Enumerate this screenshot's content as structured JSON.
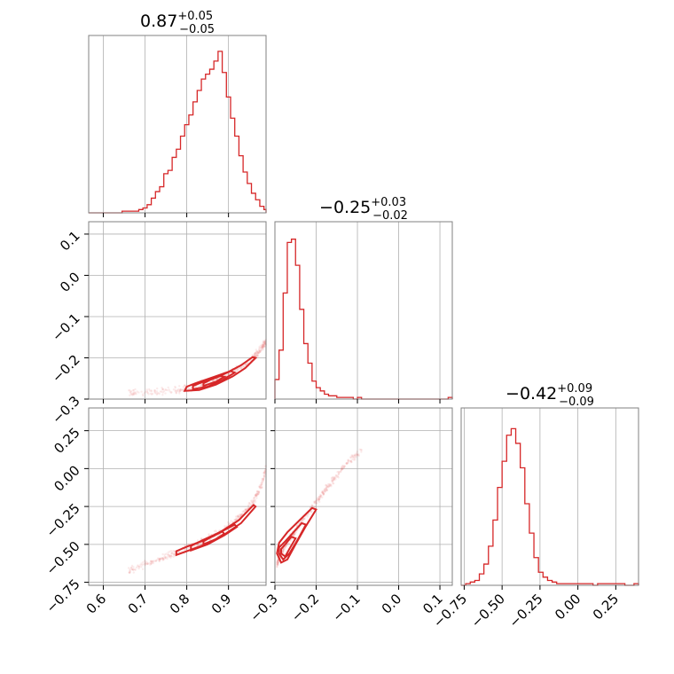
{
  "chart_data": {
    "type": "corner",
    "grid": true,
    "color": "#d62728",
    "parameters": [
      {
        "title": {
          "median": "0.87",
          "plus": "+0.05",
          "minus": "−0.05"
        },
        "range": [
          0.565,
          0.99
        ],
        "ticks": [
          0.6,
          0.7,
          0.8,
          0.9
        ],
        "tick_labels": [
          "0.6",
          "0.7",
          "0.8",
          "0.9"
        ],
        "hist": {
          "edges": [
            0.565,
            0.575,
            0.585,
            0.595,
            0.605,
            0.615,
            0.625,
            0.635,
            0.645,
            0.655,
            0.665,
            0.675,
            0.685,
            0.695,
            0.705,
            0.715,
            0.725,
            0.735,
            0.745,
            0.755,
            0.765,
            0.775,
            0.785,
            0.795,
            0.805,
            0.815,
            0.825,
            0.835,
            0.845,
            0.855,
            0.865,
            0.875,
            0.885,
            0.895,
            0.905,
            0.915,
            0.925,
            0.935,
            0.945,
            0.955,
            0.965,
            0.975,
            0.985,
            0.99
          ],
          "counts": [
            0,
            0,
            0,
            0,
            0,
            0,
            0,
            0,
            0.01,
            0.01,
            0.01,
            0.01,
            0.02,
            0.03,
            0.05,
            0.09,
            0.13,
            0.16,
            0.24,
            0.26,
            0.34,
            0.39,
            0.47,
            0.54,
            0.6,
            0.68,
            0.75,
            0.82,
            0.85,
            0.88,
            0.93,
            0.99,
            0.86,
            0.71,
            0.58,
            0.47,
            0.35,
            0.25,
            0.18,
            0.12,
            0.08,
            0.04,
            0.02
          ]
        }
      },
      {
        "title": {
          "median": "−0.25",
          "plus": "+0.03",
          "minus": "−0.02"
        },
        "range": [
          -0.3,
          0.13
        ],
        "ticks": [
          -0.3,
          -0.2,
          -0.1,
          0.0,
          0.1
        ],
        "tick_labels": [
          "−0.3",
          "−0.2",
          "−0.1",
          "0.0",
          "0.1"
        ],
        "hist": {
          "edges": [
            -0.3,
            -0.29,
            -0.28,
            -0.27,
            -0.26,
            -0.25,
            -0.24,
            -0.23,
            -0.22,
            -0.21,
            -0.2,
            -0.19,
            -0.18,
            -0.17,
            -0.16,
            -0.15,
            -0.14,
            -0.13,
            -0.12,
            -0.11,
            -0.1,
            -0.09,
            -0.08,
            -0.07,
            -0.06,
            -0.05,
            -0.04,
            -0.03,
            -0.02,
            -0.01,
            0.0,
            0.01,
            0.02,
            0.03,
            0.04,
            0.05,
            0.06,
            0.07,
            0.08,
            0.09,
            0.1,
            0.11,
            0.12,
            0.13
          ],
          "counts": [
            0.12,
            0.3,
            0.65,
            0.96,
            0.98,
            0.82,
            0.55,
            0.34,
            0.22,
            0.11,
            0.07,
            0.05,
            0.03,
            0.02,
            0.02,
            0.01,
            0.01,
            0.01,
            0.01,
            0,
            0.01,
            0,
            0,
            0,
            0,
            0,
            0,
            0,
            0,
            0,
            0,
            0,
            0,
            0,
            0,
            0,
            0,
            0,
            0,
            0,
            0,
            0,
            0.01
          ]
        }
      },
      {
        "title": {
          "median": "−0.42",
          "plus": "+0.09",
          "minus": "−0.09"
        },
        "range": [
          -0.77,
          0.4
        ],
        "ticks": [
          -0.75,
          -0.5,
          -0.25,
          0.0,
          0.25
        ],
        "tick_labels": [
          "−0.75",
          "−0.50",
          "−0.25",
          "0.00",
          "0.25"
        ],
        "hist": {
          "edges": [
            -0.77,
            -0.74,
            -0.71,
            -0.68,
            -0.65,
            -0.62,
            -0.59,
            -0.56,
            -0.53,
            -0.5,
            -0.47,
            -0.44,
            -0.41,
            -0.38,
            -0.35,
            -0.32,
            -0.29,
            -0.26,
            -0.23,
            -0.2,
            -0.17,
            -0.14,
            -0.11,
            -0.08,
            -0.05,
            -0.02,
            0.01,
            0.04,
            0.07,
            0.1,
            0.13,
            0.16,
            0.19,
            0.22,
            0.25,
            0.28,
            0.31,
            0.34,
            0.37,
            0.4
          ],
          "counts": [
            0,
            0.01,
            0.02,
            0.03,
            0.07,
            0.13,
            0.24,
            0.4,
            0.6,
            0.76,
            0.92,
            0.96,
            0.87,
            0.72,
            0.5,
            0.32,
            0.17,
            0.08,
            0.05,
            0.03,
            0.02,
            0.01,
            0.01,
            0.01,
            0.01,
            0.01,
            0.01,
            0.01,
            0.01,
            0,
            0.01,
            0.01,
            0.01,
            0.01,
            0.01,
            0.01,
            0,
            0,
            0.01
          ]
        }
      }
    ],
    "panels_2d": [
      {
        "x_param": 0,
        "y_param": 1,
        "y_ticks": [
          -0.3,
          -0.2,
          -0.1,
          0.0,
          0.1
        ],
        "y_tick_labels": [
          "−0.3",
          "−0.2",
          "−0.1",
          "0.0",
          "0.1"
        ],
        "ridge": [
          [
            0.66,
            -0.285
          ],
          [
            0.72,
            -0.283
          ],
          [
            0.78,
            -0.278
          ],
          [
            0.81,
            -0.272
          ],
          [
            0.84,
            -0.264
          ],
          [
            0.87,
            -0.254
          ],
          [
            0.9,
            -0.24
          ],
          [
            0.93,
            -0.222
          ],
          [
            0.96,
            -0.2
          ],
          [
            0.98,
            -0.175
          ],
          [
            0.99,
            -0.16
          ]
        ],
        "contours": [
          [
            [
              0.795,
              -0.28
            ],
            [
              0.83,
              -0.278
            ],
            [
              0.87,
              -0.265
            ],
            [
              0.91,
              -0.245
            ],
            [
              0.94,
              -0.225
            ],
            [
              0.965,
              -0.2
            ],
            [
              0.958,
              -0.198
            ],
            [
              0.93,
              -0.218
            ],
            [
              0.9,
              -0.234
            ],
            [
              0.86,
              -0.248
            ],
            [
              0.825,
              -0.26
            ],
            [
              0.8,
              -0.27
            ],
            [
              0.795,
              -0.28
            ]
          ],
          [
            [
              0.815,
              -0.276
            ],
            [
              0.85,
              -0.27
            ],
            [
              0.885,
              -0.254
            ],
            [
              0.915,
              -0.236
            ],
            [
              0.905,
              -0.232
            ],
            [
              0.875,
              -0.246
            ],
            [
              0.84,
              -0.258
            ],
            [
              0.815,
              -0.268
            ],
            [
              0.815,
              -0.276
            ]
          ],
          [
            [
              0.84,
              -0.268
            ],
            [
              0.87,
              -0.258
            ],
            [
              0.89,
              -0.246
            ],
            [
              0.88,
              -0.244
            ],
            [
              0.855,
              -0.254
            ],
            [
              0.84,
              -0.262
            ],
            [
              0.84,
              -0.268
            ]
          ]
        ]
      },
      {
        "x_param": 0,
        "y_param": 2,
        "y_ticks": [
          -0.75,
          -0.5,
          -0.25,
          0.0,
          0.25
        ],
        "y_tick_labels": [
          "−0.75",
          "−0.50",
          "−0.25",
          "0.00",
          "0.25"
        ],
        "ridge": [
          [
            0.66,
            -0.68
          ],
          [
            0.7,
            -0.63
          ],
          [
            0.74,
            -0.59
          ],
          [
            0.78,
            -0.55
          ],
          [
            0.82,
            -0.5
          ],
          [
            0.86,
            -0.45
          ],
          [
            0.9,
            -0.38
          ],
          [
            0.93,
            -0.31
          ],
          [
            0.96,
            -0.22
          ],
          [
            0.98,
            -0.1
          ],
          [
            0.99,
            0.0
          ]
        ],
        "contours": [
          [
            [
              0.775,
              -0.57
            ],
            [
              0.81,
              -0.535
            ],
            [
              0.85,
              -0.495
            ],
            [
              0.89,
              -0.435
            ],
            [
              0.93,
              -0.36
            ],
            [
              0.965,
              -0.25
            ],
            [
              0.96,
              -0.24
            ],
            [
              0.925,
              -0.34
            ],
            [
              0.885,
              -0.41
            ],
            [
              0.845,
              -0.47
            ],
            [
              0.8,
              -0.515
            ],
            [
              0.775,
              -0.545
            ],
            [
              0.775,
              -0.57
            ]
          ],
          [
            [
              0.81,
              -0.54
            ],
            [
              0.85,
              -0.5
            ],
            [
              0.89,
              -0.44
            ],
            [
              0.92,
              -0.385
            ],
            [
              0.915,
              -0.37
            ],
            [
              0.88,
              -0.42
            ],
            [
              0.84,
              -0.47
            ],
            [
              0.81,
              -0.51
            ],
            [
              0.81,
              -0.54
            ]
          ],
          [
            [
              0.84,
              -0.5
            ],
            [
              0.87,
              -0.465
            ],
            [
              0.89,
              -0.43
            ],
            [
              0.885,
              -0.415
            ],
            [
              0.86,
              -0.45
            ],
            [
              0.84,
              -0.48
            ],
            [
              0.84,
              -0.5
            ]
          ]
        ]
      },
      {
        "x_param": 1,
        "y_param": 2,
        "ridge": [
          [
            -0.295,
            -0.64
          ],
          [
            -0.29,
            -0.59
          ],
          [
            -0.28,
            -0.53
          ],
          [
            -0.265,
            -0.47
          ],
          [
            -0.25,
            -0.41
          ],
          [
            -0.23,
            -0.33
          ],
          [
            -0.205,
            -0.24
          ],
          [
            -0.18,
            -0.15
          ],
          [
            -0.15,
            -0.05
          ],
          [
            -0.12,
            0.05
          ],
          [
            -0.09,
            0.12
          ]
        ],
        "contours": [
          [
            [
              -0.295,
              -0.56
            ],
            [
              -0.285,
              -0.62
            ],
            [
              -0.27,
              -0.6
            ],
            [
              -0.25,
              -0.5
            ],
            [
              -0.225,
              -0.38
            ],
            [
              -0.2,
              -0.27
            ],
            [
              -0.21,
              -0.26
            ],
            [
              -0.24,
              -0.34
            ],
            [
              -0.27,
              -0.42
            ],
            [
              -0.29,
              -0.49
            ],
            [
              -0.295,
              -0.56
            ]
          ],
          [
            [
              -0.29,
              -0.56
            ],
            [
              -0.28,
              -0.6
            ],
            [
              -0.265,
              -0.56
            ],
            [
              -0.245,
              -0.47
            ],
            [
              -0.225,
              -0.37
            ],
            [
              -0.235,
              -0.36
            ],
            [
              -0.255,
              -0.42
            ],
            [
              -0.275,
              -0.48
            ],
            [
              -0.29,
              -0.52
            ],
            [
              -0.29,
              -0.56
            ]
          ],
          [
            [
              -0.285,
              -0.56
            ],
            [
              -0.275,
              -0.58
            ],
            [
              -0.265,
              -0.53
            ],
            [
              -0.25,
              -0.46
            ],
            [
              -0.26,
              -0.45
            ],
            [
              -0.275,
              -0.5
            ],
            [
              -0.285,
              -0.53
            ],
            [
              -0.285,
              -0.56
            ]
          ]
        ]
      }
    ]
  }
}
